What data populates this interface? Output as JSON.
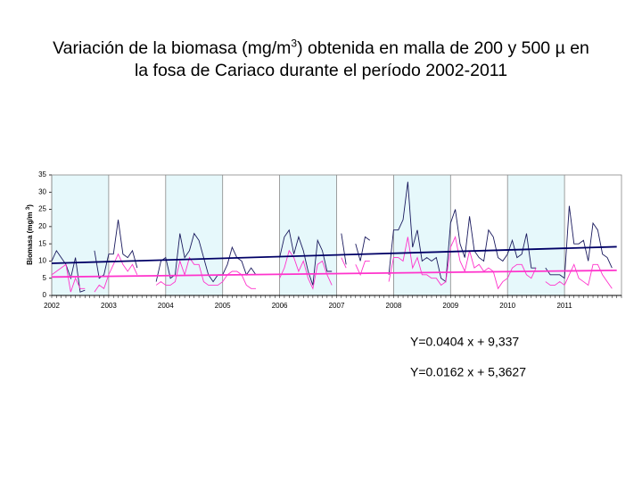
{
  "chart_data": {
    "type": "line",
    "title": [
      "Variación de la biomasa (mg/m",
      "3",
      ") obtenida en malla de 200 y 500 µ en",
      "la fosa de Cariaco durante el período 2002-2011"
    ],
    "ylabel": [
      "Biomasa (mg/m ",
      "3",
      ")"
    ],
    "xlim": [
      0,
      120
    ],
    "xticks": [
      {
        "value": 0,
        "label": "2002"
      },
      {
        "value": 12,
        "label": "2003"
      },
      {
        "value": 24,
        "label": "2004"
      },
      {
        "value": 36,
        "label": "2005"
      },
      {
        "value": 48,
        "label": "2006"
      },
      {
        "value": 60,
        "label": "2007"
      },
      {
        "value": 72,
        "label": "2008"
      },
      {
        "value": 84,
        "label": "2009"
      },
      {
        "value": 96,
        "label": "2010"
      },
      {
        "value": 108,
        "label": "2011"
      }
    ],
    "ylim": [
      0,
      35
    ],
    "yticks": [
      0,
      5,
      10,
      15,
      20,
      25,
      30,
      35
    ],
    "band_color": "#e6f8fb",
    "series": [
      {
        "color": "#1a1a5e",
        "values": [
          10,
          13,
          11,
          9,
          5,
          11,
          1,
          1.5,
          null,
          13,
          5,
          6,
          12,
          12,
          22,
          12,
          11,
          13,
          8,
          null,
          null,
          null,
          4,
          10,
          11,
          5,
          6,
          18,
          11,
          13,
          18,
          16,
          11,
          6,
          4,
          6,
          6,
          9,
          14,
          11,
          10,
          6,
          8,
          6,
          null,
          null,
          null,
          null,
          11,
          17,
          19,
          12,
          17,
          13,
          7,
          3,
          16,
          13,
          7,
          7,
          null,
          18,
          9,
          null,
          15,
          10,
          17,
          16,
          null,
          null,
          null,
          6,
          19,
          19,
          22,
          33,
          14,
          19,
          10,
          11,
          10,
          11,
          5,
          4,
          21,
          25,
          15,
          11,
          23,
          13,
          11,
          10,
          19,
          17,
          11,
          10,
          12,
          16,
          11,
          12,
          18,
          8,
          8,
          null,
          8,
          6,
          6,
          6,
          5,
          26,
          15,
          15,
          16,
          10,
          21,
          19,
          12,
          11,
          8,
          null
        ]
      },
      {
        "color": "#ff33cc",
        "values": [
          6,
          7,
          8,
          9,
          1,
          5,
          2,
          2,
          null,
          1,
          3,
          2,
          6,
          9,
          12,
          9,
          7,
          9,
          6,
          null,
          null,
          null,
          3,
          4,
          3,
          3,
          4,
          10,
          6,
          11,
          9,
          9,
          4,
          3,
          3,
          3,
          4,
          6,
          7,
          7,
          6,
          3,
          2,
          2,
          null,
          null,
          null,
          null,
          5,
          8,
          13,
          11,
          7,
          10,
          5,
          2,
          9,
          10,
          6,
          3,
          null,
          11,
          8,
          null,
          9,
          6,
          10,
          10,
          null,
          null,
          null,
          4,
          11,
          11,
          10,
          17,
          8,
          11,
          6,
          6,
          5,
          5,
          3,
          4,
          14,
          17,
          10,
          7,
          13,
          8,
          9,
          7,
          8,
          7,
          2,
          4,
          5,
          8,
          9,
          9,
          6,
          5,
          8,
          null,
          4,
          3,
          3,
          4,
          3,
          6,
          9,
          5,
          4,
          3,
          9,
          9,
          6,
          4,
          2,
          null
        ]
      }
    ],
    "trendlines": [
      {
        "label": "Y=0.0404 x + 9,337",
        "slope": 0.0404,
        "intercept": 9.337,
        "color": "#000066"
      },
      {
        "label": "Y=0.0162 x + 5,3627",
        "slope": 0.0162,
        "intercept": 5.3627,
        "color": "#ff33cc"
      }
    ]
  }
}
